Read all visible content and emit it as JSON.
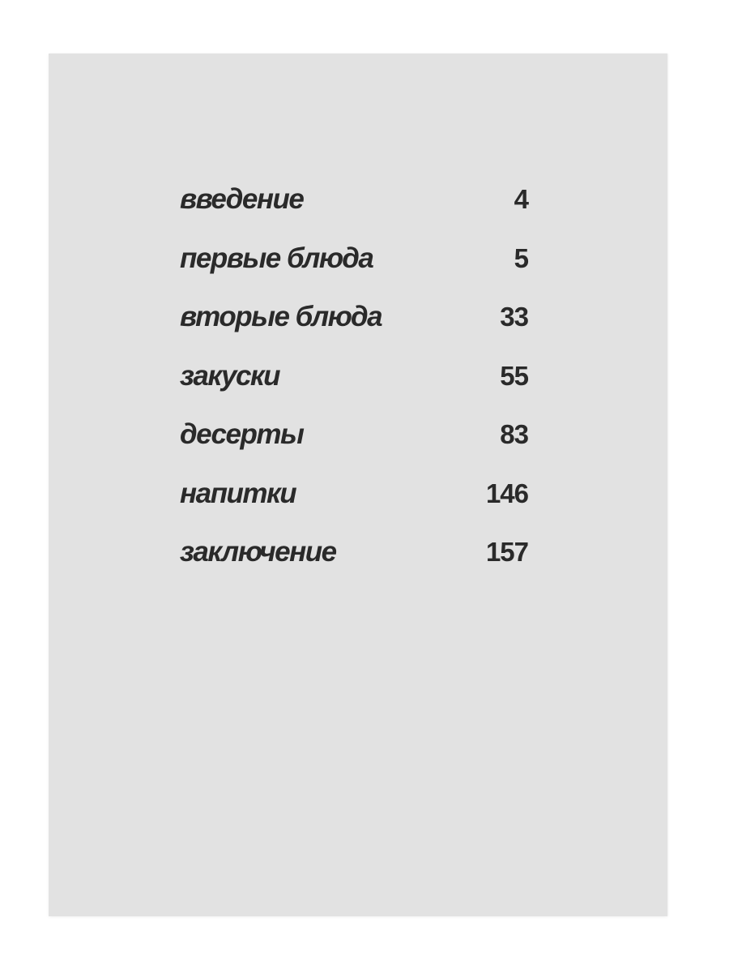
{
  "page": {
    "background_color": "#ffffff",
    "paper_color": "#e2e2e2",
    "ink_color": "#2a2a2a"
  },
  "toc": {
    "entries": [
      {
        "label": "введение",
        "page": "4"
      },
      {
        "label": "первые блюда",
        "page": "5"
      },
      {
        "label": "вторые блюда",
        "page": "33"
      },
      {
        "label": "закуски",
        "page": "55"
      },
      {
        "label": "десерты",
        "page": "83"
      },
      {
        "label": "напитки",
        "page": "146"
      },
      {
        "label": "заключение",
        "page": "157"
      }
    ]
  }
}
